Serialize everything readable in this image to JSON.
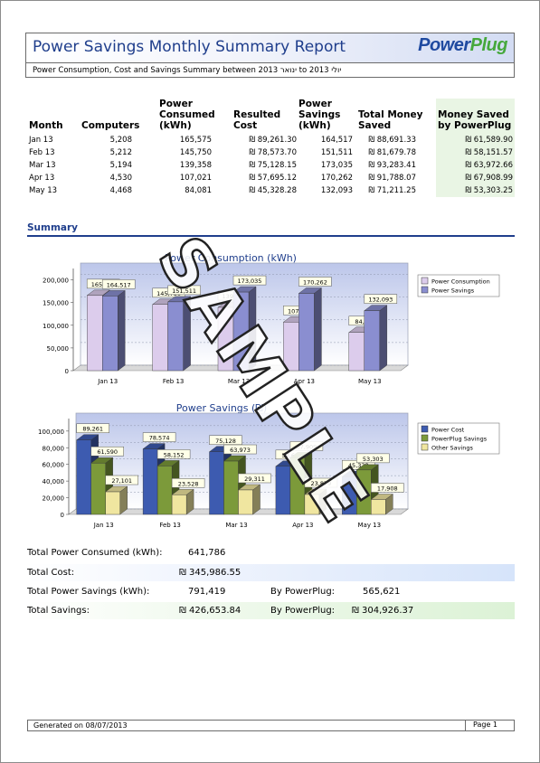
{
  "report": {
    "title": "Power Savings Monthly Summary Report",
    "logo_part1": "Power",
    "logo_part2": "Plug",
    "subtitle": "Power Consumption, Cost and Savings Summary between 2013 ינואר to 2013 יולי"
  },
  "table": {
    "headers": [
      "Month",
      "Computers",
      "Power Consumed (kWh)",
      "Resulted Cost",
      "Power Savings (kWh)",
      "Total Money Saved",
      "Money Saved by PowerPlug"
    ],
    "rows": [
      [
        "Jan 13",
        "5,208",
        "165,575",
        "₪ 89,261.30",
        "164,517",
        "₪ 88,691.33",
        "₪ 61,589.90"
      ],
      [
        "Feb 13",
        "5,212",
        "145,750",
        "₪ 78,573.70",
        "151,511",
        "₪ 81,679.78",
        "₪ 58,151.57"
      ],
      [
        "Mar 13",
        "5,194",
        "139,358",
        "₪ 75,128.15",
        "173,035",
        "₪ 93,283.41",
        "₪ 63,972.66"
      ],
      [
        "Apr 13",
        "4,530",
        "107,021",
        "₪ 57,695.12",
        "170,262",
        "₪ 91,788.07",
        "₪ 67,908.99"
      ],
      [
        "May 13",
        "4,468",
        "84,081",
        "₪ 45,328.28",
        "132,093",
        "₪ 71,211.25",
        "₪ 53,303.25"
      ]
    ]
  },
  "summary_heading": "Summary",
  "chart_data": [
    {
      "type": "bar",
      "title": "Power Consumption (kWh)",
      "categories": [
        "Jan 13",
        "Feb 13",
        "Mar 13",
        "Apr 13",
        "May 13"
      ],
      "yticks": [
        "0",
        "50,000",
        "100,000",
        "150,000",
        "200,000"
      ],
      "ylim": [
        0,
        225000
      ],
      "series": [
        {
          "name": "Power Consumption",
          "color": "#dcccec",
          "values": [
            165575,
            145750,
            139358,
            107021,
            84081
          ],
          "labels": [
            "165,575",
            "145,750",
            "139,358",
            "107,021",
            "84,081"
          ]
        },
        {
          "name": "Power Savings",
          "color": "#8a8ed0",
          "values": [
            164517,
            151511,
            173035,
            170262,
            132093
          ],
          "labels": [
            "164,517",
            "151,511",
            "173,035",
            "170,262",
            "132,093"
          ]
        }
      ],
      "legend": "right"
    },
    {
      "type": "bar",
      "title": "Power Savings (₪)",
      "categories": [
        "Jan 13",
        "Feb 13",
        "Mar 13",
        "Apr 13",
        "May 13"
      ],
      "yticks": [
        "0",
        "20,000",
        "40,000",
        "60,000",
        "80,000",
        "100,000"
      ],
      "ylim": [
        0,
        115000
      ],
      "series": [
        {
          "name": "Power Cost",
          "color": "#3d5bb0",
          "values": [
            89261,
            78574,
            75128,
            57695,
            45328
          ],
          "labels": [
            "89,261",
            "78,574",
            "75,128",
            "57,695",
            "45,328"
          ]
        },
        {
          "name": "PowerPlug Savings",
          "color": "#7c9a3a",
          "values": [
            61590,
            58152,
            63973,
            67909,
            53303
          ],
          "labels": [
            "61,590",
            "58,152",
            "63,973",
            "67,909",
            "53,303"
          ]
        },
        {
          "name": "Other Savings",
          "color": "#f0e6a0",
          "values": [
            27101,
            23528,
            29311,
            23879,
            17908
          ],
          "labels": [
            "27,101",
            "23,528",
            "29,311",
            "23,879",
            "17,908"
          ]
        }
      ],
      "legend": "right"
    }
  ],
  "totals": {
    "power_consumed_label": "Total Power Consumed (kWh):",
    "power_consumed_value": "641,786",
    "cost_label": "Total Cost:",
    "cost_value": "₪ 345,986.55",
    "power_savings_label": "Total Power Savings (kWh):",
    "power_savings_value": "791,419",
    "by_powerplug_label": "By PowerPlug:",
    "power_savings_pp": "565,621",
    "savings_label": "Total Savings:",
    "savings_value": "₪ 426,653.84",
    "savings_pp": "₪ 304,926.37"
  },
  "footer": {
    "generated": "Generated on  08/07/2013",
    "page": "Page  1"
  },
  "watermark": "SAMPLE"
}
